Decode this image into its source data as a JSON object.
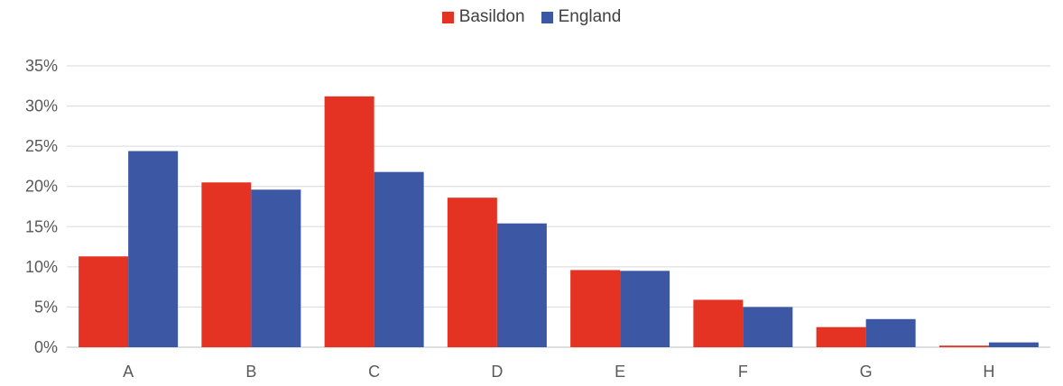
{
  "chart_data": {
    "type": "bar",
    "categories": [
      "A",
      "B",
      "C",
      "D",
      "E",
      "F",
      "G",
      "H"
    ],
    "series": [
      {
        "name": "Basildon",
        "color": "#E53323",
        "values": [
          11.3,
          20.5,
          31.2,
          18.6,
          9.6,
          5.9,
          2.5,
          0.2
        ]
      },
      {
        "name": "England",
        "color": "#3C57A3",
        "values": [
          24.4,
          19.6,
          21.8,
          15.4,
          9.5,
          5.0,
          3.5,
          0.6
        ]
      }
    ],
    "yticks": [
      "0%",
      "5%",
      "10%",
      "15%",
      "20%",
      "25%",
      "30%",
      "35%"
    ],
    "ylim": [
      0,
      35
    ],
    "ytick_step": 5,
    "grid": true,
    "legend_position": "top-center",
    "title": "",
    "xlabel": "",
    "ylabel": ""
  }
}
